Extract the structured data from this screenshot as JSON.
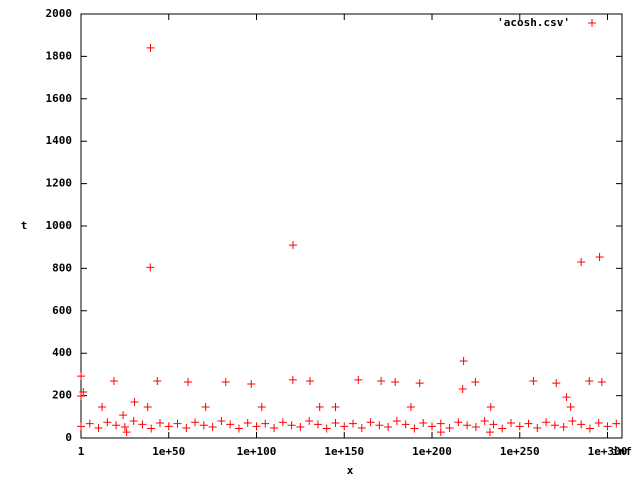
{
  "chart_data": {
    "type": "scatter",
    "xlabel": "x",
    "ylabel": "t",
    "xscale": "log",
    "xlim": [
      1,
      1.7976931348623157e+308
    ],
    "xticks": [
      1,
      {
        "value": 1e+50,
        "label": "1e+50"
      },
      {
        "value": 1e+100,
        "label": "1e+100"
      },
      {
        "value": 1e+150,
        "label": "1e+150"
      },
      {
        "value": 1e+200,
        "label": "1e+200"
      },
      {
        "value": 1e+250,
        "label": "1e+250"
      },
      {
        "value": 1e+300,
        "label": "1e+300"
      },
      {
        "value": 1.7976931348623157e+308,
        "label": "inf"
      }
    ],
    "ylim": [
      0,
      2000
    ],
    "yticks": [
      0,
      200,
      400,
      600,
      800,
      1000,
      1200,
      1400,
      1600,
      1800,
      2000
    ],
    "grid": false,
    "legend": "top-right",
    "series": [
      {
        "name": "'acosh.csv'",
        "color": "#ff0000",
        "x": [
          4e+39,
          3e+39,
          6e+120,
          1e+285,
          3e+295,
          1e+218,
          1,
          1,
          6e+18,
          3e+43,
          1e+61,
          3e+82,
          1e+97,
          5e+120,
          3e+130,
          1e+158,
          1e+171,
          1e+179,
          1e+193,
          5e+224,
          6e+257,
          6e+270,
          4e+289,
          6e+296,
          3e+217,
          4e+276,
          1000000000000.0,
          20.0,
          3e+30,
          1e+38,
          1e+24,
          1e+26,
          1e+205,
          1e+233,
          1e+71,
          1e+103,
          1e+136,
          1e+145,
          1e+188,
          3e+233,
          1e+279,
          1.0,
          100000.0,
          10000000000.0,
          1000000000000000.0,
          1e+20,
          1e+25,
          1e+30,
          1e+35,
          1e+40,
          1e+45,
          1e+50,
          1e+55,
          1e+60,
          1e+65,
          1e+70,
          1e+75,
          1e+80,
          1e+85,
          1e+90,
          1e+95,
          1e+100,
          1e+105,
          1e+110,
          1e+115,
          1e+120,
          1e+125,
          1e+130,
          1e+135,
          1e+140,
          1e+145,
          1e+150,
          1e+155,
          1e+160,
          1e+165,
          1e+170,
          1e+175,
          1e+180,
          1e+185,
          1e+190,
          1e+195,
          1e+200,
          1e+205,
          1e+210,
          1e+215,
          1e+220,
          1e+225,
          1e+230,
          1e+235,
          1e+240,
          1e+245,
          1e+250,
          1e+255,
          1e+260,
          1e+265,
          1e+270,
          1e+275,
          1e+280,
          1e+285,
          1e+290,
          1e+295,
          1e+300,
          1e+305
        ],
        "values": [
          1840,
          805,
          910,
          830,
          854,
          363,
          292,
          198,
          269,
          269,
          264,
          264,
          255,
          274,
          269,
          274,
          269,
          264,
          259,
          264,
          269,
          259,
          269,
          264,
          231,
          193,
          146,
          217,
          170,
          146,
          108,
          28,
          28,
          28,
          146,
          146,
          146,
          146,
          146,
          146,
          146,
          55,
          68,
          47,
          74,
          60,
          52,
          80,
          64,
          45,
          71,
          55,
          68,
          47,
          74,
          60,
          52,
          80,
          64,
          45,
          71,
          55,
          68,
          47,
          74,
          60,
          52,
          80,
          64,
          45,
          71,
          55,
          68,
          47,
          74,
          60,
          52,
          80,
          64,
          45,
          71,
          55,
          68,
          47,
          74,
          60,
          52,
          80,
          64,
          45,
          71,
          55,
          68,
          47,
          74,
          60,
          52,
          80,
          64,
          45,
          71,
          55,
          68
        ]
      }
    ]
  }
}
